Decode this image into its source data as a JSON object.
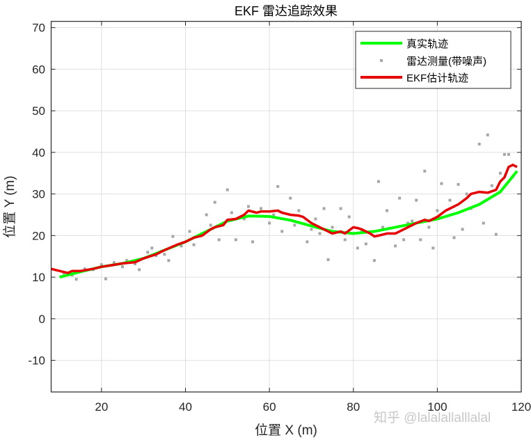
{
  "chart_data": {
    "type": "line",
    "title": "EKF 雷达追踪效果",
    "xlabel": "位置 X (m)",
    "ylabel": "位置 Y (m)",
    "xlim": [
      8,
      120
    ],
    "ylim": [
      -17.6,
      71.5
    ],
    "xticks": [
      20,
      40,
      60,
      80,
      100,
      120
    ],
    "yticks": [
      -10,
      0,
      10,
      20,
      30,
      40,
      50,
      60,
      70
    ],
    "grid": true,
    "legend_position": "top-right",
    "series": [
      {
        "name": "真实轨迹",
        "kind": "line",
        "color": "#00ff00",
        "x": [
          10,
          15,
          20,
          25,
          30,
          35,
          40,
          45,
          50,
          55,
          60,
          65,
          70,
          75,
          80,
          85,
          90,
          95,
          100,
          105,
          110,
          115,
          119
        ],
        "y": [
          10,
          11.3,
          12.5,
          13.3,
          14.5,
          16.5,
          18.5,
          21,
          23.5,
          24.7,
          24.6,
          23.7,
          22.3,
          21,
          20.5,
          21,
          22,
          23,
          24,
          25.5,
          27.5,
          30.5,
          35.5
        ]
      },
      {
        "name": "雷达测量(带噪声)",
        "kind": "scatter",
        "color": "#a6a6a6",
        "x": [
          11,
          13,
          14,
          16,
          18,
          20,
          21,
          23,
          25,
          26,
          28,
          29,
          31,
          32,
          33,
          35,
          36,
          37,
          39,
          41,
          42,
          44,
          45,
          46,
          47,
          48,
          50,
          51,
          52,
          54,
          55,
          56,
          58,
          60,
          61,
          62,
          63,
          65,
          66,
          67,
          69,
          70,
          71,
          72,
          73,
          74,
          75,
          77,
          78,
          79,
          81,
          82,
          83,
          85,
          86,
          87,
          88,
          90,
          91,
          92,
          93,
          94,
          95,
          96,
          97,
          98,
          99,
          100,
          101,
          103,
          104,
          105,
          106,
          107,
          108,
          110,
          111,
          112,
          113,
          114,
          115,
          116,
          117,
          118
        ],
        "y": [
          11,
          10.5,
          9.5,
          12,
          11.8,
          13,
          9.6,
          13.5,
          12.5,
          14,
          13.2,
          11.8,
          16,
          17,
          15.2,
          15.5,
          14,
          19.8,
          17.5,
          21,
          17.8,
          20.5,
          25,
          22.5,
          28,
          19,
          31,
          25.5,
          19,
          24,
          27,
          18.5,
          26.5,
          23,
          25,
          31.8,
          21,
          29,
          22.5,
          26,
          18.5,
          21.5,
          24,
          20.5,
          26.5,
          14.2,
          22,
          26.5,
          19,
          24.5,
          17,
          21,
          18,
          14,
          33,
          22,
          26,
          17.5,
          29,
          19,
          23,
          23.5,
          28.5,
          19,
          35.5,
          22,
          17,
          26,
          32.5,
          28.5,
          19.5,
          32.3,
          21.5,
          30,
          26.5,
          42,
          23,
          44.2,
          32,
          20.3,
          35,
          39.5,
          39.5,
          34.2
        ]
      },
      {
        "name": "EKF估计轨迹",
        "kind": "line",
        "color": "#e60000",
        "x": [
          8,
          10,
          12,
          13,
          15,
          18,
          20,
          22,
          25,
          28,
          30,
          33,
          35,
          38,
          40,
          42,
          44,
          46,
          47,
          49,
          50,
          52,
          54,
          55,
          57,
          58,
          60,
          62,
          63,
          65,
          67,
          68,
          70,
          72,
          73,
          75,
          77,
          78,
          80,
          81,
          82,
          84,
          85,
          86,
          88,
          90,
          92,
          93,
          95,
          97,
          98,
          100,
          102,
          103,
          105,
          107,
          108,
          110,
          112,
          114,
          115,
          116,
          117,
          118,
          119
        ],
        "y": [
          12,
          11.5,
          11,
          11.5,
          11.5,
          12,
          12.5,
          12.8,
          13.3,
          13.6,
          14.5,
          15.5,
          16.5,
          17.8,
          18.5,
          19.5,
          20,
          21.5,
          22,
          22.5,
          23.8,
          24,
          25,
          26,
          25.5,
          25.8,
          25.8,
          26,
          25.5,
          25,
          24.8,
          24.5,
          23,
          22,
          21.5,
          20.5,
          21,
          20.5,
          22,
          21.8,
          21.5,
          20.5,
          19.8,
          20,
          20.5,
          20.5,
          21.5,
          22,
          23,
          23.8,
          23.5,
          24.5,
          26,
          26.5,
          27.5,
          29,
          30,
          30.5,
          30.3,
          31,
          33,
          34,
          36.5,
          37,
          36.5
        ]
      }
    ]
  },
  "watermark": "知乎 @lalalallalllalal"
}
